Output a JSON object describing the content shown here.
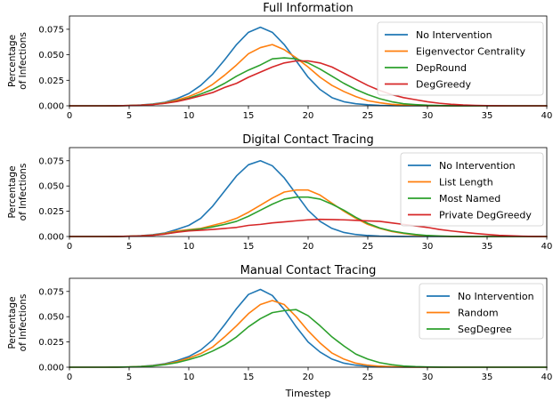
{
  "colors": {
    "blue": "#1f77b4",
    "orange": "#ff7f0e",
    "green": "#2ca02c",
    "red": "#d62728"
  },
  "chart_data": [
    {
      "type": "line",
      "title": "Full Information",
      "xlabel": "",
      "ylabel": "Percentage\nof Infections",
      "xlim": [
        0,
        40
      ],
      "ylim": [
        0,
        0.088
      ],
      "xticks": [
        "0",
        "5",
        "10",
        "15",
        "20",
        "25",
        "30",
        "35",
        "40"
      ],
      "yticks": [
        "0.000",
        "0.025",
        "0.050",
        "0.075"
      ],
      "legend_position": "top-right",
      "grid": false,
      "x": [
        0,
        1,
        2,
        3,
        4,
        5,
        6,
        7,
        8,
        9,
        10,
        11,
        12,
        13,
        14,
        15,
        16,
        17,
        18,
        19,
        20,
        21,
        22,
        23,
        24,
        25,
        26,
        27,
        28,
        29,
        30,
        31,
        32,
        33,
        34,
        35,
        36,
        37,
        38,
        39,
        40
      ],
      "series": [
        {
          "name": "No Intervention",
          "color": "blue",
          "values": [
            0,
            0,
            0,
            0,
            0.0001,
            0.0003,
            0.0008,
            0.0018,
            0.0035,
            0.007,
            0.012,
            0.02,
            0.031,
            0.045,
            0.06,
            0.072,
            0.077,
            0.072,
            0.06,
            0.044,
            0.028,
            0.016,
            0.008,
            0.004,
            0.002,
            0.001,
            0.0004,
            0.0002,
            0.0001,
            0,
            0,
            0,
            0,
            0,
            0,
            0,
            0,
            0,
            0,
            0,
            0
          ]
        },
        {
          "name": "Eigenvector Centrality",
          "color": "orange",
          "values": [
            0,
            0,
            0,
            0,
            0.0001,
            0.0003,
            0.0007,
            0.0015,
            0.003,
            0.0055,
            0.009,
            0.014,
            0.021,
            0.03,
            0.04,
            0.051,
            0.057,
            0.06,
            0.055,
            0.047,
            0.038,
            0.028,
            0.02,
            0.014,
            0.009,
            0.005,
            0.003,
            0.0015,
            0.0007,
            0.0003,
            0.0001,
            0,
            0,
            0,
            0,
            0,
            0,
            0,
            0,
            0,
            0
          ]
        },
        {
          "name": "DepRound",
          "color": "green",
          "values": [
            0,
            0,
            0,
            0,
            0.0001,
            0.0003,
            0.0006,
            0.0013,
            0.0026,
            0.0045,
            0.0075,
            0.0115,
            0.016,
            0.022,
            0.029,
            0.035,
            0.04,
            0.046,
            0.047,
            0.046,
            0.042,
            0.036,
            0.029,
            0.022,
            0.016,
            0.011,
            0.007,
            0.004,
            0.002,
            0.0012,
            0.0006,
            0.0003,
            0.0001,
            0,
            0,
            0,
            0,
            0,
            0,
            0,
            0
          ]
        },
        {
          "name": "DegGreedy",
          "color": "red",
          "values": [
            0,
            0,
            0,
            0,
            0.0001,
            0.0003,
            0.0006,
            0.0012,
            0.0024,
            0.0042,
            0.0068,
            0.0098,
            0.013,
            0.018,
            0.022,
            0.028,
            0.033,
            0.038,
            0.042,
            0.044,
            0.044,
            0.042,
            0.038,
            0.032,
            0.026,
            0.02,
            0.015,
            0.011,
            0.008,
            0.006,
            0.004,
            0.0025,
            0.0015,
            0.0008,
            0.0004,
            0.0002,
            0.0001,
            0,
            0,
            0,
            0
          ]
        }
      ]
    },
    {
      "type": "line",
      "title": "Digital Contact Tracing",
      "xlabel": "",
      "ylabel": "Percentage\nof Infections",
      "xlim": [
        0,
        40
      ],
      "ylim": [
        0,
        0.088
      ],
      "xticks": [
        "0",
        "5",
        "10",
        "15",
        "20",
        "25",
        "30",
        "35",
        "40"
      ],
      "yticks": [
        "0.000",
        "0.025",
        "0.050",
        "0.075"
      ],
      "legend_position": "top-right",
      "grid": false,
      "x": [
        0,
        1,
        2,
        3,
        4,
        5,
        6,
        7,
        8,
        9,
        10,
        11,
        12,
        13,
        14,
        15,
        16,
        17,
        18,
        19,
        20,
        21,
        22,
        23,
        24,
        25,
        26,
        27,
        28,
        29,
        30,
        31,
        32,
        33,
        34,
        35,
        36,
        37,
        38,
        39,
        40
      ],
      "series": [
        {
          "name": "No Intervention",
          "color": "blue",
          "values": [
            0,
            0,
            0,
            0,
            0.0001,
            0.0003,
            0.0008,
            0.0018,
            0.0035,
            0.007,
            0.011,
            0.018,
            0.03,
            0.045,
            0.06,
            0.071,
            0.075,
            0.07,
            0.058,
            0.042,
            0.026,
            0.015,
            0.008,
            0.004,
            0.002,
            0.001,
            0.0004,
            0.0002,
            0.0001,
            0,
            0,
            0,
            0,
            0,
            0,
            0,
            0,
            0,
            0,
            0,
            0
          ]
        },
        {
          "name": "List Length",
          "color": "orange",
          "values": [
            0,
            0,
            0,
            0,
            0.0001,
            0.0003,
            0.0007,
            0.0015,
            0.003,
            0.0055,
            0.0068,
            0.008,
            0.011,
            0.014,
            0.018,
            0.024,
            0.031,
            0.038,
            0.044,
            0.046,
            0.046,
            0.041,
            0.033,
            0.025,
            0.018,
            0.012,
            0.008,
            0.005,
            0.003,
            0.0015,
            0.0007,
            0.0003,
            0.0001,
            0,
            0,
            0,
            0,
            0,
            0,
            0,
            0
          ]
        },
        {
          "name": "Most Named",
          "color": "green",
          "values": [
            0,
            0,
            0,
            0,
            0.0001,
            0.0003,
            0.0006,
            0.0013,
            0.0026,
            0.0045,
            0.0062,
            0.0075,
            0.0095,
            0.012,
            0.015,
            0.02,
            0.026,
            0.032,
            0.037,
            0.039,
            0.039,
            0.037,
            0.032,
            0.026,
            0.019,
            0.013,
            0.0085,
            0.0055,
            0.0035,
            0.002,
            0.001,
            0.0005,
            0.0002,
            0.0001,
            0,
            0,
            0,
            0,
            0,
            0,
            0
          ]
        },
        {
          "name": "Private DegGreedy",
          "color": "red",
          "values": [
            0,
            0,
            0,
            0,
            0.0001,
            0.0003,
            0.0006,
            0.0012,
            0.0024,
            0.0042,
            0.0055,
            0.0062,
            0.007,
            0.008,
            0.009,
            0.011,
            0.012,
            0.0135,
            0.0145,
            0.0155,
            0.0165,
            0.017,
            0.0168,
            0.0165,
            0.016,
            0.0155,
            0.015,
            0.0135,
            0.012,
            0.0105,
            0.009,
            0.007,
            0.0055,
            0.0042,
            0.003,
            0.002,
            0.0012,
            0.0007,
            0.0003,
            0.0001,
            0
          ]
        }
      ]
    },
    {
      "type": "line",
      "title": "Manual Contact Tracing",
      "xlabel": "Timestep",
      "ylabel": "Percentage\nof Infections",
      "xlim": [
        0,
        40
      ],
      "ylim": [
        0,
        0.088
      ],
      "xticks": [
        "0",
        "5",
        "10",
        "15",
        "20",
        "25",
        "30",
        "35",
        "40"
      ],
      "yticks": [
        "0.000",
        "0.025",
        "0.050",
        "0.075"
      ],
      "legend_position": "top-right",
      "grid": false,
      "x": [
        0,
        1,
        2,
        3,
        4,
        5,
        6,
        7,
        8,
        9,
        10,
        11,
        12,
        13,
        14,
        15,
        16,
        17,
        18,
        19,
        20,
        21,
        22,
        23,
        24,
        25,
        26,
        27,
        28,
        29,
        30,
        31,
        32,
        33,
        34,
        35,
        36,
        37,
        38,
        39,
        40
      ],
      "series": [
        {
          "name": "No Intervention",
          "color": "blue",
          "values": [
            0,
            0,
            0,
            0,
            0.0001,
            0.0003,
            0.0008,
            0.0018,
            0.0035,
            0.0065,
            0.0105,
            0.017,
            0.027,
            0.042,
            0.058,
            0.072,
            0.077,
            0.071,
            0.057,
            0.04,
            0.025,
            0.015,
            0.008,
            0.004,
            0.002,
            0.001,
            0.0004,
            0.0002,
            0.0001,
            0,
            0,
            0,
            0,
            0,
            0,
            0,
            0,
            0,
            0,
            0,
            0
          ]
        },
        {
          "name": "Random",
          "color": "orange",
          "values": [
            0,
            0,
            0,
            0,
            0.0001,
            0.0003,
            0.0007,
            0.0015,
            0.003,
            0.0055,
            0.009,
            0.0135,
            0.02,
            0.03,
            0.041,
            0.053,
            0.062,
            0.066,
            0.062,
            0.05,
            0.036,
            0.024,
            0.014,
            0.008,
            0.004,
            0.002,
            0.001,
            0.0005,
            0.0002,
            0.0001,
            0,
            0,
            0,
            0,
            0,
            0,
            0,
            0,
            0,
            0,
            0
          ]
        },
        {
          "name": "SegDegree",
          "color": "green",
          "values": [
            0,
            0,
            0,
            0,
            0.0001,
            0.0003,
            0.0006,
            0.0013,
            0.0026,
            0.0045,
            0.0075,
            0.011,
            0.016,
            0.022,
            0.03,
            0.04,
            0.048,
            0.054,
            0.056,
            0.057,
            0.051,
            0.041,
            0.03,
            0.021,
            0.013,
            0.008,
            0.0045,
            0.0025,
            0.0012,
            0.0006,
            0.0003,
            0.0001,
            0,
            0,
            0,
            0,
            0,
            0,
            0,
            0,
            0
          ]
        }
      ]
    }
  ]
}
